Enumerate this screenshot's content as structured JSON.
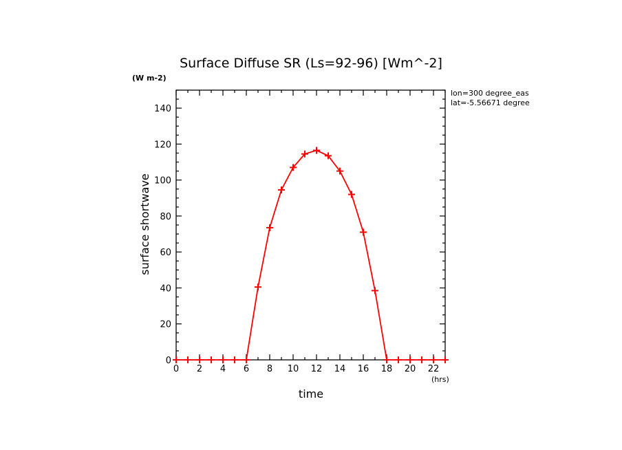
{
  "chart_data": {
    "type": "line",
    "title": "Surface Diffuse SR (Ls=92-96) [Wm^-2]",
    "units_label": "(W m-2)",
    "xlabel": "time",
    "ylabel": "surface shortwave",
    "x_units": "(hrs)",
    "annotations": [
      "lon=300 degree_eas",
      "lat=-5.56671 degree"
    ],
    "xlim": [
      0,
      23
    ],
    "ylim": [
      0,
      150
    ],
    "x_ticks": [
      0,
      2,
      4,
      6,
      8,
      10,
      12,
      14,
      16,
      18,
      20,
      22
    ],
    "y_ticks": [
      0,
      20,
      40,
      60,
      80,
      100,
      120,
      140
    ],
    "color": "#ff0000",
    "marker": "+",
    "series": [
      {
        "x": [
          0,
          1,
          2,
          3,
          4,
          5,
          6,
          7,
          8,
          9,
          10,
          11,
          12,
          13,
          14,
          15,
          16,
          17,
          18,
          19,
          20,
          21,
          22,
          23
        ],
        "y": [
          0,
          0,
          0,
          0,
          0,
          0,
          0,
          40.5,
          73.5,
          94.5,
          107,
          114.5,
          116.5,
          113.5,
          105,
          92,
          71,
          38.5,
          0,
          0,
          0,
          0,
          0,
          0
        ]
      }
    ]
  }
}
